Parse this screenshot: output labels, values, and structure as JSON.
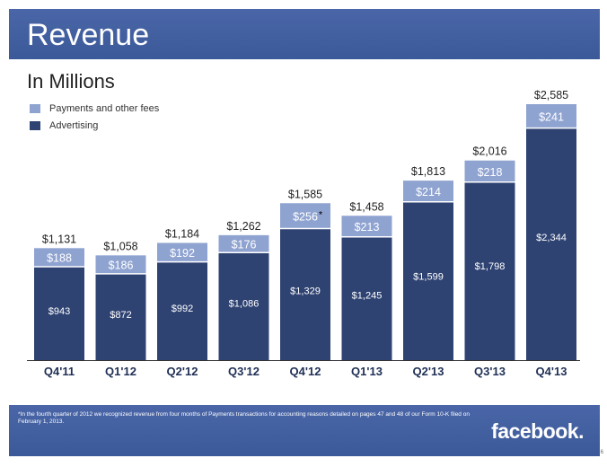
{
  "header": {
    "title": "Revenue"
  },
  "subtitle": "In Millions",
  "legend": {
    "payments_label": "Payments and other fees",
    "advertising_label": "Advertising"
  },
  "colors": {
    "header_bg": "#3b5998",
    "advertising": "#2f4373",
    "payments": "#8fa3d1"
  },
  "chart_data": {
    "type": "bar",
    "stacked": true,
    "categories": [
      "Q4'11",
      "Q1'12",
      "Q2'12",
      "Q3'12",
      "Q4'12",
      "Q1'13",
      "Q2'13",
      "Q3'13",
      "Q4'13"
    ],
    "series": [
      {
        "name": "Advertising",
        "values": [
          943,
          872,
          992,
          1086,
          1329,
          1245,
          1599,
          1798,
          2344
        ],
        "labels": [
          "$943",
          "$872",
          "$992",
          "$1,086",
          "$1,329",
          "$1,245",
          "$1,599",
          "$1,798",
          "$2,344"
        ]
      },
      {
        "name": "Payments and other fees",
        "values": [
          188,
          186,
          192,
          176,
          256,
          213,
          214,
          218,
          241
        ],
        "labels": [
          "$188",
          "$186",
          "$192",
          "$176",
          "$256",
          "$213",
          "$214",
          "$218",
          "$241"
        ]
      }
    ],
    "totals": [
      1131,
      1058,
      1184,
      1262,
      1585,
      1458,
      1813,
      2016,
      2585
    ],
    "total_labels": [
      "$1,131",
      "$1,058",
      "$1,184",
      "$1,262",
      "$1,585",
      "$1,458",
      "$1,813",
      "$2,016",
      "$2,585"
    ],
    "annotation": {
      "category_index": 4,
      "text": "*"
    },
    "ylim": [
      0,
      2585
    ],
    "grid": false,
    "legend_position": "top-left"
  },
  "footer": {
    "footnote": "*In the fourth quarter of 2012 we recognized revenue from four months of Payments transactions for accounting reasons detailed on pages 47 and 48 of our Form 10-K filed on February 1, 2013.",
    "brand": "facebook.",
    "page_number": "6"
  }
}
